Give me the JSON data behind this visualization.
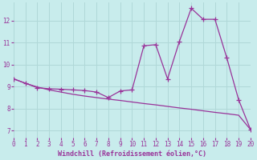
{
  "xlabel": "Windchill (Refroidissement éolien,°C)",
  "background_color": "#c8ecec",
  "grid_color": "#b0d8d8",
  "line_color": "#993399",
  "x_data": [
    0,
    1,
    2,
    3,
    4,
    5,
    6,
    7,
    8,
    9,
    10,
    11,
    12,
    13,
    14,
    15,
    16,
    17,
    18,
    19,
    20
  ],
  "y_curve": [
    9.35,
    9.15,
    8.95,
    8.9,
    8.88,
    8.85,
    8.82,
    8.75,
    8.5,
    8.8,
    8.85,
    10.85,
    10.9,
    9.35,
    11.05,
    12.55,
    12.05,
    12.05,
    10.3,
    8.4,
    7.05
  ],
  "y_trend": [
    9.35,
    9.15,
    8.98,
    8.85,
    8.75,
    8.65,
    8.57,
    8.5,
    8.43,
    8.37,
    8.3,
    8.23,
    8.17,
    8.1,
    8.03,
    7.97,
    7.9,
    7.83,
    7.77,
    7.7,
    7.05
  ],
  "ylim": [
    6.7,
    12.8
  ],
  "xlim": [
    0,
    20
  ],
  "yticks": [
    7,
    8,
    9,
    10,
    11,
    12
  ],
  "xticks": [
    0,
    1,
    2,
    3,
    4,
    5,
    6,
    7,
    8,
    9,
    10,
    11,
    12,
    13,
    14,
    15,
    16,
    17,
    18,
    19,
    20
  ],
  "marker": "+",
  "markersize": 4,
  "linewidth": 0.9
}
